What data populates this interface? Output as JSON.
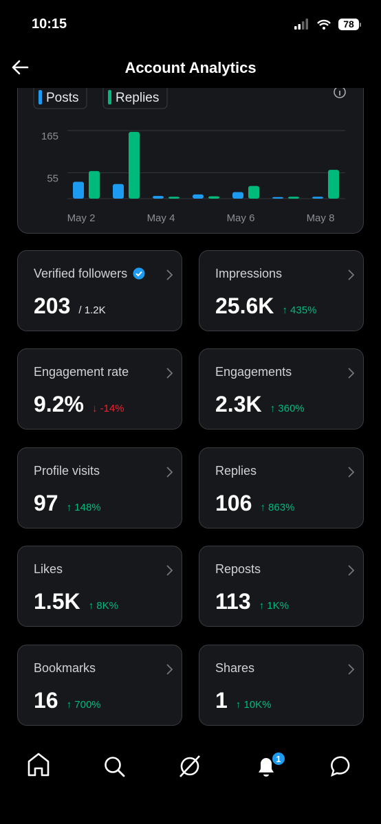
{
  "status_bar": {
    "time": "10:15",
    "battery": "78"
  },
  "header": {
    "title": "Account Analytics"
  },
  "chart_data": {
    "type": "bar",
    "categories": [
      "May 2",
      null,
      "May 4",
      null,
      "May 6",
      null,
      "May 8"
    ],
    "series": [
      {
        "name": "Posts",
        "color": "#1d9bf0",
        "values": [
          44,
          38,
          7,
          11,
          17,
          4,
          5
        ]
      },
      {
        "name": "Replies",
        "color": "#00ba7c",
        "values": [
          72,
          174,
          5,
          6,
          33,
          5,
          75
        ]
      }
    ],
    "ylim": [
      0,
      185
    ],
    "yticks": [
      55,
      165
    ],
    "grid": true
  },
  "cards": [
    {
      "title": "Verified followers",
      "value": "203",
      "note": "/ 1.2K",
      "verified": true
    },
    {
      "title": "Impressions",
      "value": "25.6K",
      "change": "↑ 435%",
      "color": "#00ba7c"
    },
    {
      "title": "Engagement rate",
      "value": "9.2%",
      "change": "↓ -14%",
      "color": "#f4212e"
    },
    {
      "title": "Engagements",
      "value": "2.3K",
      "change": "↑ 360%",
      "color": "#00ba7c"
    },
    {
      "title": "Profile visits",
      "value": "97",
      "change": "↑ 148%",
      "color": "#00ba7c"
    },
    {
      "title": "Replies",
      "value": "106",
      "change": "↑ 863%",
      "color": "#00ba7c"
    },
    {
      "title": "Likes",
      "value": "1.5K",
      "change": "↑ 8K%",
      "color": "#00ba7c"
    },
    {
      "title": "Reposts",
      "value": "113",
      "change": "↑ 1K%",
      "color": "#00ba7c"
    },
    {
      "title": "Bookmarks",
      "value": "16",
      "change": "↑ 700%",
      "color": "#00ba7c"
    },
    {
      "title": "Shares",
      "value": "1",
      "change": "↑ 10K%",
      "color": "#00ba7c"
    }
  ],
  "nav": {
    "badge": "1"
  }
}
